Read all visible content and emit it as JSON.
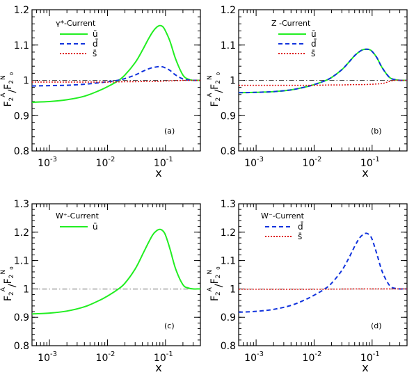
{
  "figure": {
    "ytitle_sym": "F",
    "ytitle_sub": "2",
    "ytitle_supA": "A",
    "ytitle_supN": "N",
    "ytitle_supN_sub": "0",
    "xlabel": "x"
  },
  "chart_data": [
    {
      "type": "line",
      "panel_label": "(a)",
      "legend_title": "γ*-Current",
      "xlabel": "x",
      "xscale": "log",
      "xlim": [
        0.0005,
        0.4
      ],
      "ylim": [
        0.8,
        1.2
      ],
      "yticks": [
        "0.8",
        "0.9",
        "1",
        "1.1",
        "1.2"
      ],
      "xticks": [
        {
          "base": "10",
          "exp": "-3",
          "x": 0.001
        },
        {
          "base": "10",
          "exp": "-2",
          "x": 0.01
        },
        {
          "base": "10",
          "exp": "-1",
          "x": 0.1
        }
      ],
      "reference_line": 1.0,
      "legend_placement": "top-left",
      "series": [
        {
          "name": "ū",
          "color": "#22ee22",
          "style": "solid",
          "x": [
            0.0005,
            0.001,
            0.002,
            0.004,
            0.007,
            0.01,
            0.015,
            0.02,
            0.03,
            0.04,
            0.05,
            0.06,
            0.07,
            0.08,
            0.09,
            0.1,
            0.12,
            0.15,
            0.2,
            0.25,
            0.3,
            0.35,
            0.4
          ],
          "values": [
            0.938,
            0.94,
            0.945,
            0.955,
            0.97,
            0.982,
            0.998,
            1.015,
            1.05,
            1.085,
            1.115,
            1.137,
            1.15,
            1.155,
            1.152,
            1.14,
            1.11,
            1.06,
            1.015,
            1.003,
            1.0,
            1.0,
            1.0
          ]
        },
        {
          "name": "d̄",
          "color": "#1133dd",
          "style": "dashed",
          "x": [
            0.0005,
            0.001,
            0.002,
            0.004,
            0.007,
            0.01,
            0.015,
            0.02,
            0.03,
            0.04,
            0.05,
            0.06,
            0.07,
            0.08,
            0.09,
            0.1,
            0.12,
            0.15,
            0.2,
            0.25,
            0.3,
            0.35,
            0.4
          ],
          "values": [
            0.984,
            0.985,
            0.986,
            0.989,
            0.993,
            0.996,
            1.0,
            1.005,
            1.015,
            1.025,
            1.032,
            1.036,
            1.038,
            1.039,
            1.038,
            1.035,
            1.028,
            1.015,
            1.004,
            1.001,
            1.0,
            1.0,
            1.0
          ]
        },
        {
          "name": "s̄",
          "color": "#dd1111",
          "style": "dotted",
          "x": [
            0.0005,
            0.001,
            0.002,
            0.005,
            0.01,
            0.02,
            0.03,
            0.05,
            0.07,
            0.1,
            0.15,
            0.2,
            0.25,
            0.3,
            0.4
          ],
          "values": [
            0.995,
            0.995,
            0.995,
            0.995,
            0.995,
            0.996,
            0.996,
            0.997,
            0.997,
            0.998,
            0.999,
            1.0,
            1.0,
            1.0,
            1.0
          ]
        }
      ]
    },
    {
      "type": "line",
      "panel_label": "(b)",
      "legend_title": "Z  -Current",
      "xlabel": "x",
      "xscale": "log",
      "xlim": [
        0.0005,
        0.4
      ],
      "ylim": [
        0.8,
        1.2
      ],
      "yticks": [
        "0.8",
        "0.9",
        "1",
        "1.1",
        "1.2"
      ],
      "xticks": [
        {
          "base": "10",
          "exp": "-3",
          "x": 0.001
        },
        {
          "base": "10",
          "exp": "-2",
          "x": 0.01
        },
        {
          "base": "10",
          "exp": "-1",
          "x": 0.1
        }
      ],
      "reference_line": 1.0,
      "legend_placement": "top-right",
      "series": [
        {
          "name": "ū",
          "color": "#22ee22",
          "style": "solid",
          "x": [
            0.0005,
            0.001,
            0.002,
            0.004,
            0.007,
            0.01,
            0.015,
            0.02,
            0.03,
            0.04,
            0.05,
            0.06,
            0.07,
            0.08,
            0.09,
            0.1,
            0.12,
            0.15,
            0.2,
            0.25,
            0.3,
            0.35,
            0.4
          ],
          "values": [
            0.965,
            0.966,
            0.968,
            0.973,
            0.981,
            0.988,
            0.998,
            1.008,
            1.03,
            1.052,
            1.07,
            1.081,
            1.087,
            1.088,
            1.087,
            1.082,
            1.065,
            1.035,
            1.008,
            1.002,
            1.0,
            1.0,
            1.0
          ]
        },
        {
          "name": "d̄",
          "color": "#1133dd",
          "style": "dashed",
          "x": [
            0.0005,
            0.001,
            0.002,
            0.004,
            0.007,
            0.01,
            0.015,
            0.02,
            0.03,
            0.04,
            0.05,
            0.06,
            0.07,
            0.08,
            0.09,
            0.1,
            0.12,
            0.15,
            0.2,
            0.25,
            0.3,
            0.35,
            0.4
          ],
          "values": [
            0.965,
            0.966,
            0.968,
            0.973,
            0.981,
            0.988,
            0.998,
            1.008,
            1.03,
            1.052,
            1.07,
            1.081,
            1.087,
            1.088,
            1.087,
            1.082,
            1.065,
            1.035,
            1.008,
            1.002,
            1.0,
            1.0,
            1.0
          ]
        },
        {
          "name": "s̄",
          "color": "#dd1111",
          "style": "dotted",
          "x": [
            0.0005,
            0.001,
            0.002,
            0.005,
            0.01,
            0.02,
            0.03,
            0.05,
            0.07,
            0.1,
            0.13,
            0.16,
            0.2,
            0.25,
            0.3,
            0.4
          ],
          "values": [
            0.986,
            0.986,
            0.986,
            0.986,
            0.986,
            0.987,
            0.987,
            0.988,
            0.988,
            0.989,
            0.99,
            0.992,
            0.997,
            1.0,
            1.0,
            1.0
          ]
        }
      ]
    },
    {
      "type": "line",
      "panel_label": "(c)",
      "legend_title": "W⁺-Current",
      "xlabel": "x",
      "xscale": "log",
      "xlim": [
        0.0005,
        0.4
      ],
      "ylim": [
        0.8,
        1.3
      ],
      "yticks": [
        "0.8",
        "0.9",
        "1",
        "1.1",
        "1.2",
        "1.3"
      ],
      "xticks": [
        {
          "base": "10",
          "exp": "-3",
          "x": 0.001
        },
        {
          "base": "10",
          "exp": "-2",
          "x": 0.01
        },
        {
          "base": "10",
          "exp": "-1",
          "x": 0.1
        }
      ],
      "reference_line": 1.0,
      "legend_placement": "top-left",
      "series": [
        {
          "name": "ū",
          "color": "#22ee22",
          "style": "solid",
          "x": [
            0.0005,
            0.001,
            0.002,
            0.004,
            0.007,
            0.01,
            0.015,
            0.02,
            0.03,
            0.04,
            0.05,
            0.06,
            0.07,
            0.08,
            0.09,
            0.1,
            0.12,
            0.15,
            0.2,
            0.25,
            0.3,
            0.35,
            0.4
          ],
          "values": [
            0.912,
            0.915,
            0.922,
            0.937,
            0.958,
            0.975,
            0.998,
            1.02,
            1.07,
            1.12,
            1.16,
            1.19,
            1.205,
            1.21,
            1.205,
            1.19,
            1.14,
            1.07,
            1.015,
            1.003,
            1.0,
            1.0,
            1.0
          ]
        }
      ]
    },
    {
      "type": "line",
      "panel_label": "(d)",
      "legend_title": "W⁻-Current",
      "xlabel": "x",
      "xscale": "log",
      "xlim": [
        0.0005,
        0.4
      ],
      "ylim": [
        0.8,
        1.3
      ],
      "yticks": [
        "0.8",
        "0.9",
        "1",
        "1.1",
        "1.2",
        "1.3"
      ],
      "xticks": [
        {
          "base": "10",
          "exp": "-3",
          "x": 0.001
        },
        {
          "base": "10",
          "exp": "-2",
          "x": 0.01
        },
        {
          "base": "10",
          "exp": "-1",
          "x": 0.1
        }
      ],
      "reference_line": 1.0,
      "legend_placement": "top-left",
      "series": [
        {
          "name": "d̄",
          "color": "#1133dd",
          "style": "dashed",
          "x": [
            0.0005,
            0.001,
            0.002,
            0.004,
            0.007,
            0.01,
            0.015,
            0.02,
            0.03,
            0.04,
            0.05,
            0.06,
            0.07,
            0.08,
            0.09,
            0.1,
            0.12,
            0.15,
            0.2,
            0.25,
            0.3,
            0.35,
            0.4
          ],
          "values": [
            0.918,
            0.921,
            0.928,
            0.942,
            0.962,
            0.978,
            0.999,
            1.02,
            1.065,
            1.11,
            1.15,
            1.178,
            1.192,
            1.196,
            1.19,
            1.175,
            1.125,
            1.06,
            1.012,
            1.002,
            1.0,
            1.0,
            1.0
          ]
        },
        {
          "name": "s̄",
          "color": "#dd1111",
          "style": "dotted",
          "x": [
            0.0005,
            0.001,
            0.01,
            0.05,
            0.1,
            0.2,
            0.4
          ],
          "values": [
            0.999,
            0.999,
            0.999,
            1.0,
            1.0,
            1.0,
            1.0
          ]
        }
      ]
    }
  ]
}
